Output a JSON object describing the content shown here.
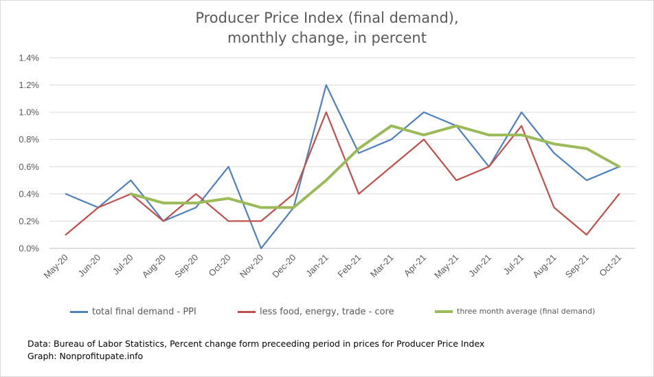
{
  "chart_data": {
    "type": "line",
    "title_line1": "Producer Price Index (final demand),",
    "title_line2": "monthly change, in percent",
    "categories": [
      "May-20",
      "Jun-20",
      "Jul-20",
      "Aug-20",
      "Sep-20",
      "Oct-20",
      "Nov-20",
      "Dec-20",
      "Jan-21",
      "Feb-21",
      "Mar-21",
      "Apr-21",
      "May-21",
      "Jun-21",
      "Jul-21",
      "Aug-21",
      "Sep-21",
      "Oct-21"
    ],
    "yticks": [
      "0.0%",
      "0.2%",
      "0.4%",
      "0.6%",
      "0.8%",
      "1.0%",
      "1.2%",
      "1.4%"
    ],
    "ylim": [
      0,
      1.4
    ],
    "grid": true,
    "legend_position": "bottom",
    "series": [
      {
        "name": "total final demand -  PPI",
        "color": "#4F81BD",
        "values": [
          0.4,
          0.3,
          0.5,
          0.2,
          0.3,
          0.6,
          0.0,
          0.3,
          1.2,
          0.7,
          0.8,
          1.0,
          0.9,
          0.6,
          1.0,
          0.7,
          0.5,
          0.6
        ]
      },
      {
        "name": "less food, energy, trade -  core",
        "color": "#C0504D",
        "values": [
          0.1,
          0.3,
          0.4,
          0.2,
          0.4,
          0.2,
          0.2,
          0.4,
          1.0,
          0.4,
          0.6,
          0.8,
          0.5,
          0.6,
          0.9,
          0.3,
          0.1,
          0.4
        ]
      },
      {
        "name": "three month average (final demand)",
        "color": "#9BBB59",
        "values": [
          null,
          null,
          0.4,
          0.333,
          0.333,
          0.367,
          0.3,
          0.3,
          0.5,
          0.733,
          0.9,
          0.833,
          0.9,
          0.833,
          0.833,
          0.767,
          0.733,
          0.6
        ]
      }
    ]
  },
  "footer": {
    "source_line": "Data: Bureau of Labor Statistics, Percent change form preceeding period in prices for Producer Price Index",
    "graph_line": "Graph:  Nonprofitupate.info"
  }
}
